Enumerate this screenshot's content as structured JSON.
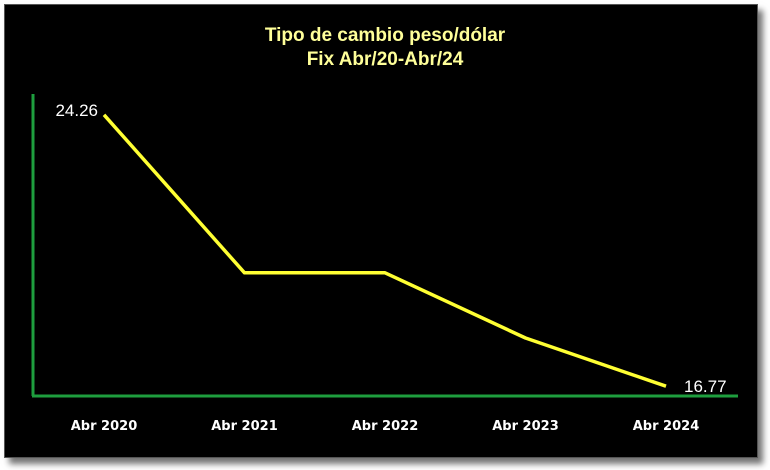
{
  "chart_data": {
    "type": "line",
    "title_line1": "Tipo de cambio peso/dólar",
    "title_line2": "Fix Abr/20-Abr/24",
    "categories": [
      "Abr 2020",
      "Abr 2021",
      "Abr 2022",
      "Abr 2023",
      "Abr 2024"
    ],
    "series": [
      {
        "values": [
          24.26,
          19.9,
          19.9,
          18.1,
          16.77
        ]
      }
    ],
    "data_labels": {
      "first": "24.26",
      "last": "16.77"
    },
    "ylim": [
      16.5,
      25
    ],
    "xlabel": "",
    "ylabel": "",
    "grid": false,
    "legend": "none",
    "colors": {
      "background": "#000000",
      "line": "#ffff33",
      "axis": "#1e9e3e",
      "title": "#ffff99",
      "labels": "#ffffff"
    }
  }
}
